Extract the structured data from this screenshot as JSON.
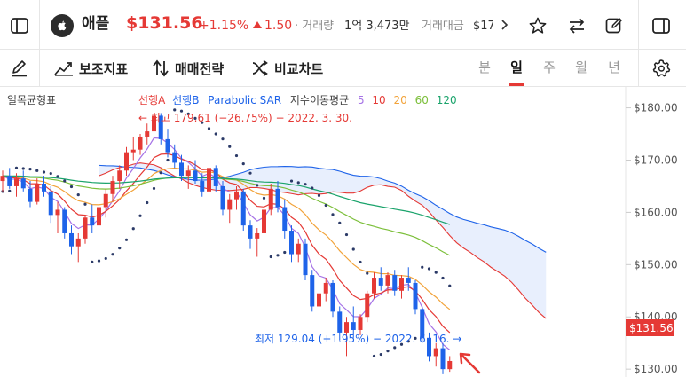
{
  "header": {
    "stock_name": "애플",
    "price": "$131.56",
    "change_pct": "+1.15%",
    "change_abs": "1.50",
    "volume_label": "· 거래량",
    "volume_value": "1억 3,473만",
    "amount_label": "거래대금",
    "amount_value": "$17",
    "colors": {
      "up": "#e53935",
      "down": "#1e63e9"
    },
    "icons": [
      "apple-logo-icon",
      "layout-panel-icon",
      "star-icon",
      "swap-icon",
      "edit-icon",
      "sidebar-icon",
      "chevron-right-icon"
    ]
  },
  "toolbar": {
    "tools": [
      "보조지표",
      "매매전략",
      "비교차트"
    ],
    "periods": [
      "분",
      "일",
      "주",
      "월",
      "년"
    ],
    "active_period": "일",
    "icons": [
      "draw-pen-icon",
      "indicator-icon",
      "strategy-icon",
      "compare-icon",
      "settings-gear-icon"
    ]
  },
  "chart": {
    "indicator_label": "일목균형표",
    "legend": {
      "ichimoku_a": "선행A",
      "ichimoku_b": "선행B",
      "sar": "Parabolic SAR",
      "ma_label": "지수이동평균",
      "ma_periods": [
        "5",
        "10",
        "20",
        "60",
        "120"
      ],
      "ma_colors": [
        "#a673e6",
        "#e53935",
        "#f2a33a",
        "#7cbf3a",
        "#1aa36b"
      ]
    },
    "high_annotation": "← 최고 179.61 (−26.75%) − 2022. 3. 30.",
    "low_annotation": "최저 129.04 (+1.95%) − 2022. 6. 16. →",
    "current_price_tag": "$131.56"
  },
  "chart_data": {
    "type": "candlestick",
    "y_axis": {
      "ticks": [
        "$180.00",
        "$170.00",
        "$160.00",
        "$150.00",
        "$140.00",
        "$130.00"
      ],
      "range": [
        128.5,
        184
      ]
    },
    "x_axis": {
      "labels": []
    },
    "highest": {
      "value": 179.61,
      "change": "−26.75%",
      "date": "2022. 3. 30."
    },
    "lowest": {
      "value": 129.04,
      "change": "+1.95%",
      "date": "2022. 6. 16."
    },
    "last_price": 131.56,
    "candles": [
      [
        166.0,
        168.0,
        164.0,
        167.0
      ],
      [
        167.0,
        168.5,
        164.5,
        165.0
      ],
      [
        165.0,
        167.5,
        163.0,
        166.5
      ],
      [
        166.5,
        168.0,
        164.0,
        164.6
      ],
      [
        164.5,
        166.0,
        161.0,
        162.0
      ],
      [
        162.0,
        166.5,
        161.5,
        165.5
      ],
      [
        165.5,
        167.0,
        163.0,
        164.0
      ],
      [
        164.0,
        165.0,
        158.0,
        159.5
      ],
      [
        159.5,
        162.0,
        156.0,
        160.5
      ],
      [
        160.5,
        161.0,
        155.0,
        156.0
      ],
      [
        156.0,
        157.5,
        152.0,
        153.5
      ],
      [
        153.5,
        156.0,
        150.5,
        155.0
      ],
      [
        155.0,
        159.5,
        154.0,
        159.0
      ],
      [
        159.0,
        161.5,
        156.0,
        157.5
      ],
      [
        157.5,
        162.0,
        156.5,
        161.0
      ],
      [
        161.0,
        164.5,
        159.0,
        163.5
      ],
      [
        163.5,
        167.0,
        162.0,
        166.0
      ],
      [
        166.0,
        169.0,
        164.5,
        168.0
      ],
      [
        168.0,
        172.5,
        167.0,
        171.5
      ],
      [
        171.5,
        174.5,
        170.0,
        172.0
      ],
      [
        172.0,
        175.0,
        171.0,
        174.5
      ],
      [
        174.5,
        177.0,
        173.0,
        175.5
      ],
      [
        175.5,
        179.61,
        174.5,
        178.5
      ],
      [
        178.5,
        179.0,
        173.0,
        174.0
      ],
      [
        174.0,
        176.0,
        170.5,
        171.5
      ],
      [
        171.5,
        173.0,
        168.5,
        169.5
      ],
      [
        169.5,
        171.0,
        166.0,
        167.0
      ],
      [
        167.0,
        169.0,
        164.5,
        168.0
      ],
      [
        168.0,
        170.0,
        165.5,
        166.0
      ],
      [
        166.0,
        167.5,
        163.0,
        164.0
      ],
      [
        164.0,
        169.5,
        163.5,
        168.5
      ],
      [
        168.5,
        169.0,
        164.0,
        165.0
      ],
      [
        165.0,
        166.0,
        159.5,
        160.5
      ],
      [
        160.5,
        163.5,
        158.0,
        162.5
      ],
      [
        162.5,
        165.0,
        160.5,
        164.0
      ],
      [
        164.0,
        164.5,
        156.5,
        157.5
      ],
      [
        157.5,
        158.5,
        153.0,
        155.0
      ],
      [
        155.0,
        157.0,
        151.5,
        156.0
      ],
      [
        156.0,
        161.5,
        155.5,
        160.5
      ],
      [
        160.5,
        165.5,
        159.5,
        164.5
      ],
      [
        164.5,
        166.0,
        160.0,
        161.0
      ],
      [
        161.0,
        162.5,
        155.0,
        156.5
      ],
      [
        156.5,
        157.5,
        150.5,
        152.0
      ],
      [
        152.0,
        155.0,
        150.5,
        154.0
      ],
      [
        154.0,
        155.0,
        147.0,
        148.0
      ],
      [
        148.0,
        149.0,
        141.0,
        142.0
      ],
      [
        142.0,
        145.5,
        139.5,
        144.5
      ],
      [
        144.5,
        147.5,
        143.0,
        146.5
      ],
      [
        146.5,
        147.0,
        140.0,
        141.0
      ],
      [
        141.0,
        142.0,
        135.5,
        137.0
      ],
      [
        137.0,
        140.0,
        132.5,
        139.0
      ],
      [
        139.0,
        142.0,
        136.0,
        137.5
      ],
      [
        137.5,
        140.5,
        136.5,
        140.0
      ],
      [
        140.0,
        145.0,
        139.0,
        144.5
      ],
      [
        144.5,
        148.5,
        143.5,
        147.5
      ],
      [
        147.5,
        149.5,
        145.0,
        146.0
      ],
      [
        146.0,
        148.5,
        144.5,
        148.0
      ],
      [
        148.0,
        149.0,
        144.0,
        145.0
      ],
      [
        145.0,
        148.0,
        143.5,
        147.5
      ],
      [
        147.5,
        149.5,
        145.0,
        146.5
      ],
      [
        146.5,
        147.0,
        140.5,
        141.5
      ],
      [
        141.5,
        142.0,
        135.0,
        136.0
      ],
      [
        136.0,
        137.0,
        131.5,
        132.5
      ],
      [
        132.5,
        135.0,
        130.5,
        134.0
      ],
      [
        134.0,
        135.0,
        129.04,
        130.0
      ],
      [
        130.0,
        132.5,
        129.5,
        131.56
      ]
    ]
  }
}
